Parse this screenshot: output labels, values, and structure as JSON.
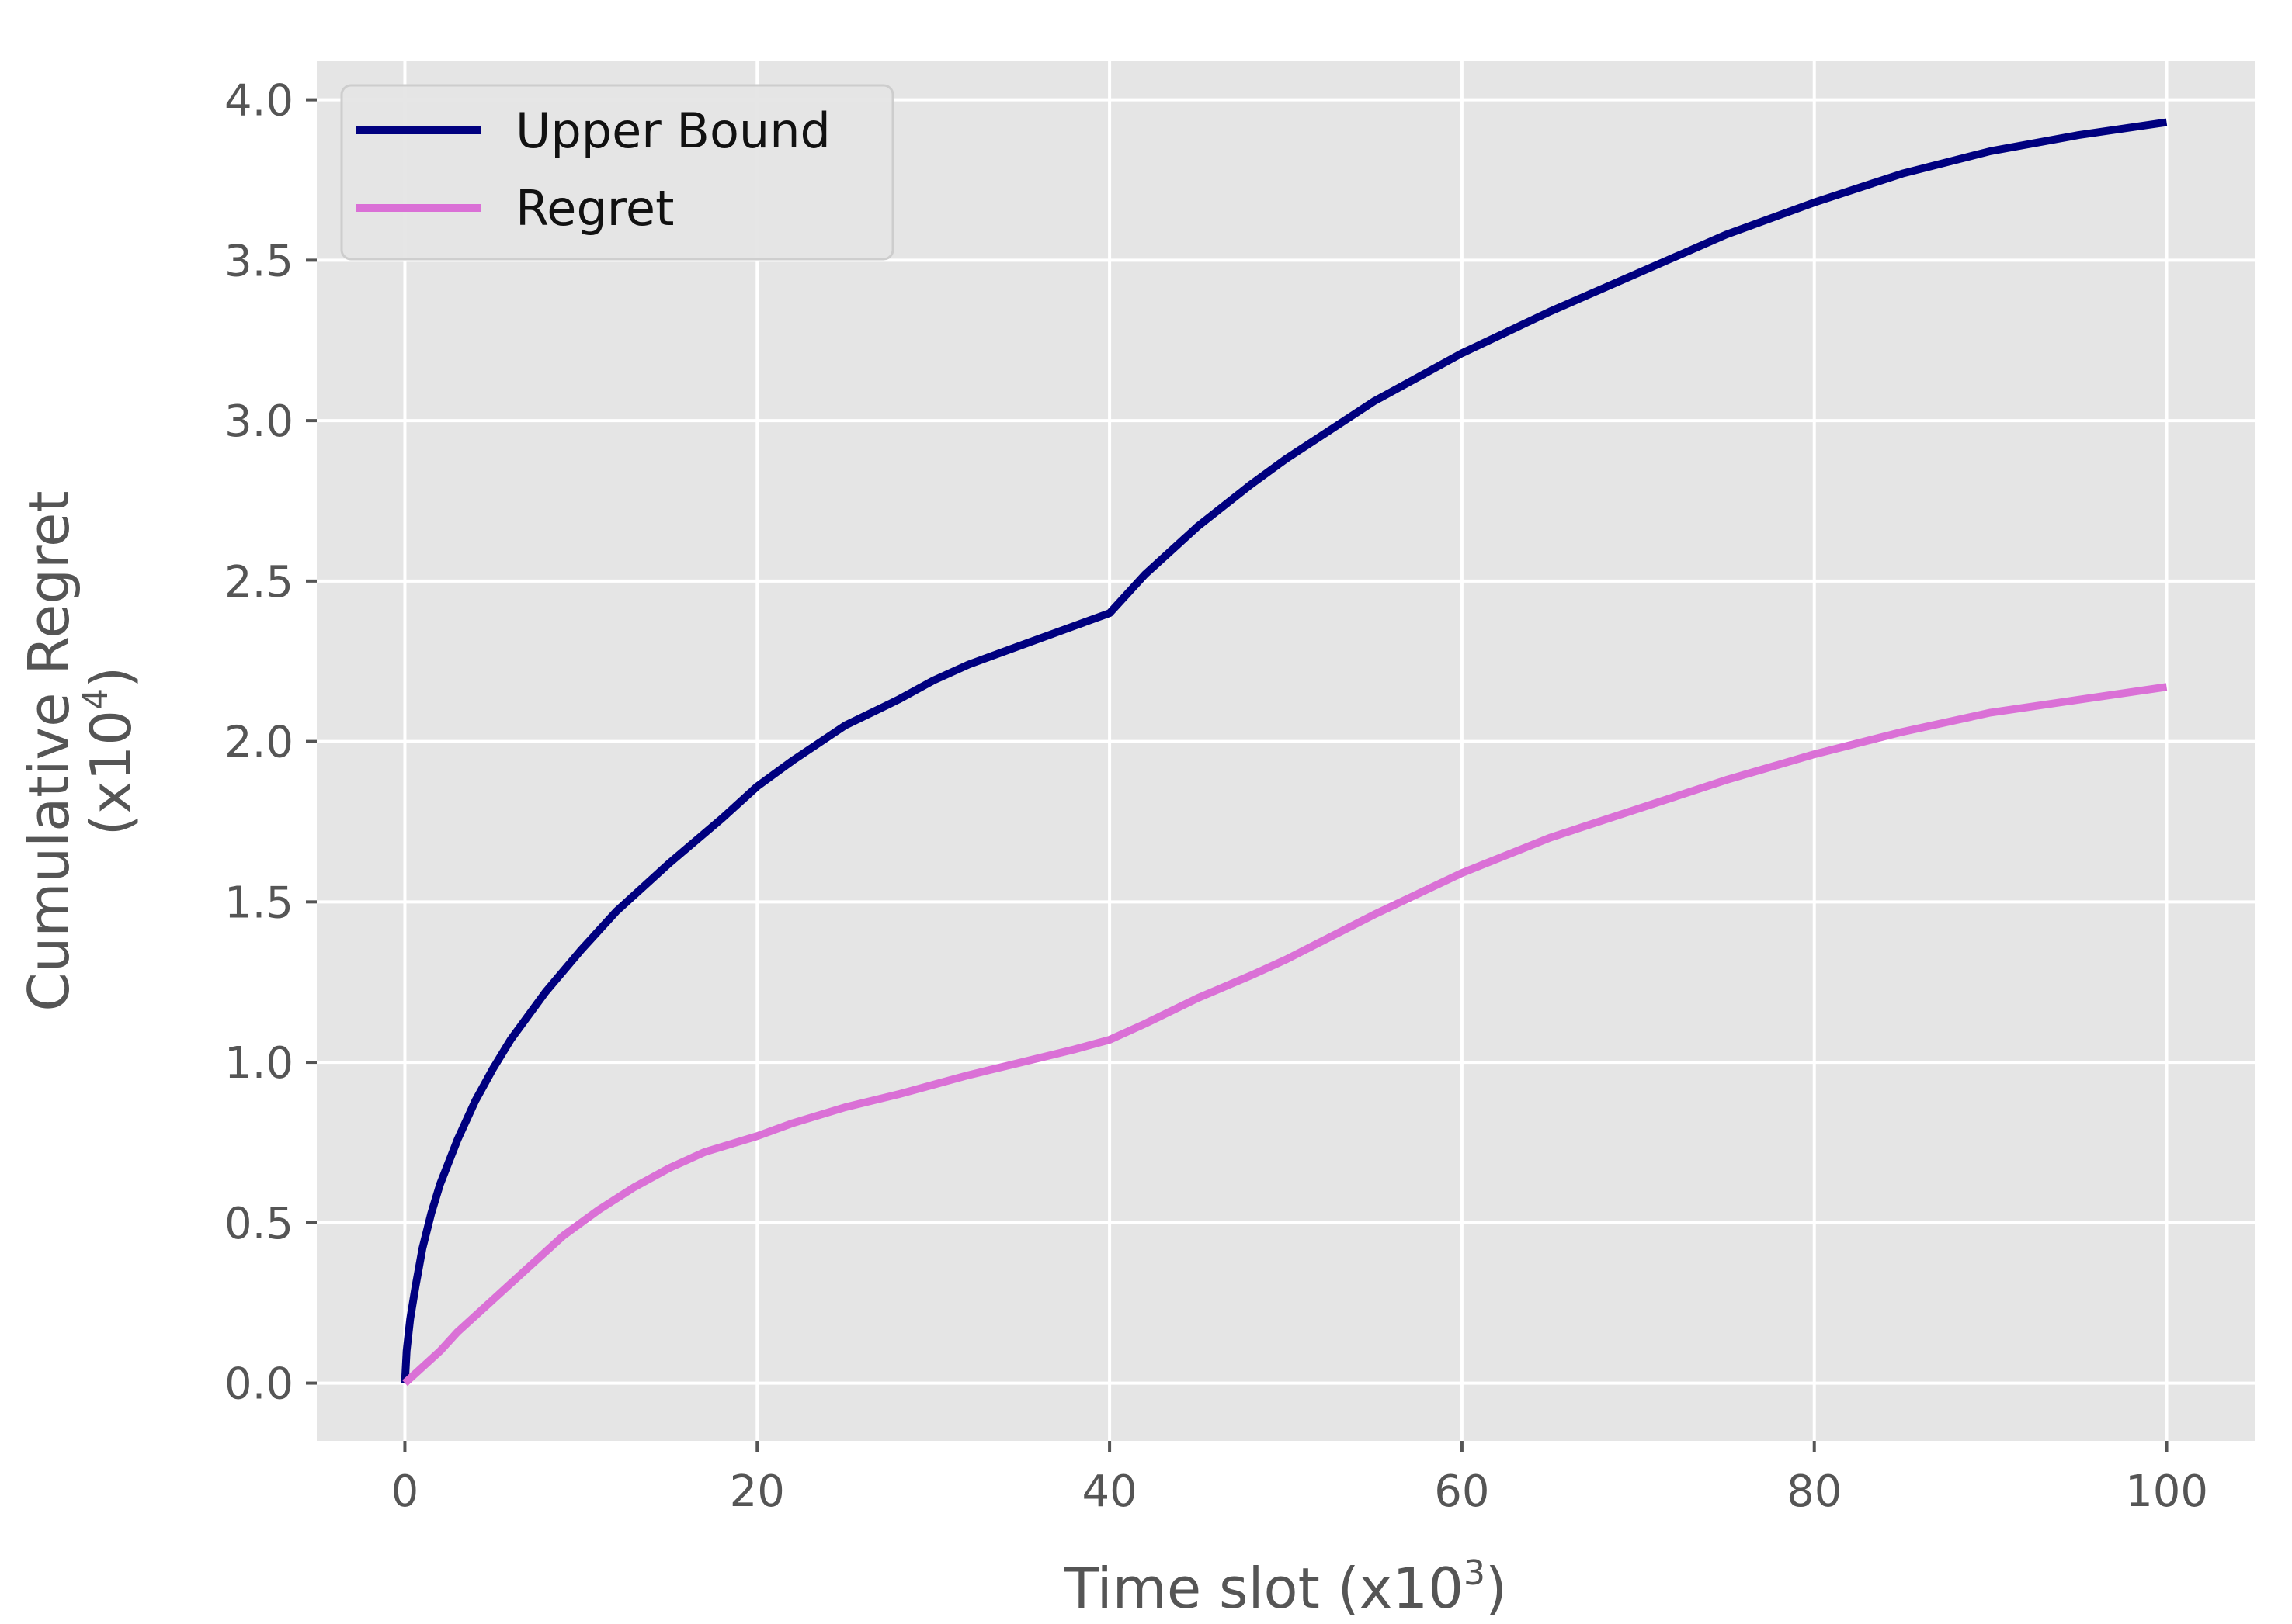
{
  "chart_data": {
    "type": "line",
    "xlabel": "Time slot (x10",
    "xlabel_sup": "3",
    "xlabel_end": ")",
    "ylabel_line1": "Cumulative Regret",
    "ylabel_line2": "(x10",
    "ylabel_sup": "4",
    "ylabel_end": ")",
    "xlim": [
      -5,
      105
    ],
    "ylim": [
      -0.18,
      4.12
    ],
    "xticks": [
      0,
      20,
      40,
      60,
      80,
      100
    ],
    "xtick_labels": [
      "0",
      "20",
      "40",
      "60",
      "80",
      "100"
    ],
    "yticks": [
      0.0,
      0.5,
      1.0,
      1.5,
      2.0,
      2.5,
      3.0,
      3.5,
      4.0
    ],
    "ytick_labels": [
      "0.0",
      "0.5",
      "1.0",
      "1.5",
      "2.0",
      "2.5",
      "3.0",
      "3.5",
      "4.0"
    ],
    "grid": true,
    "legend_position": "top-left",
    "series": [
      {
        "name": "Upper Bound",
        "color": "#00007f",
        "x": [
          0,
          0.1,
          0.3,
          0.6,
          1,
          1.5,
          2,
          3,
          4,
          5,
          6,
          8,
          10,
          12,
          15,
          18,
          20,
          22,
          25,
          28,
          30,
          32,
          35,
          38,
          40,
          42,
          45,
          48,
          50,
          55,
          60,
          65,
          70,
          75,
          80,
          85,
          90,
          95,
          100
        ],
        "y": [
          0.0,
          0.1,
          0.2,
          0.3,
          0.42,
          0.53,
          0.62,
          0.76,
          0.88,
          0.98,
          1.07,
          1.22,
          1.35,
          1.47,
          1.62,
          1.76,
          1.86,
          1.94,
          2.05,
          2.13,
          2.19,
          2.24,
          2.3,
          2.36,
          2.4,
          2.52,
          2.67,
          2.8,
          2.88,
          3.06,
          3.21,
          3.34,
          3.46,
          3.58,
          3.68,
          3.77,
          3.84,
          3.89,
          3.93
        ]
      },
      {
        "name": "Regret",
        "color": "#da70d6",
        "x": [
          0,
          1,
          2,
          3,
          5,
          7,
          9,
          11,
          13,
          15,
          17,
          20,
          22,
          25,
          28,
          30,
          32,
          35,
          38,
          40,
          42,
          45,
          48,
          50,
          55,
          60,
          65,
          70,
          75,
          80,
          85,
          90,
          95,
          100
        ],
        "y": [
          0.0,
          0.05,
          0.1,
          0.16,
          0.26,
          0.36,
          0.46,
          0.54,
          0.61,
          0.67,
          0.72,
          0.77,
          0.81,
          0.86,
          0.9,
          0.93,
          0.96,
          1.0,
          1.04,
          1.07,
          1.12,
          1.2,
          1.27,
          1.32,
          1.46,
          1.59,
          1.7,
          1.79,
          1.88,
          1.96,
          2.03,
          2.09,
          2.13,
          2.17
        ]
      }
    ]
  }
}
